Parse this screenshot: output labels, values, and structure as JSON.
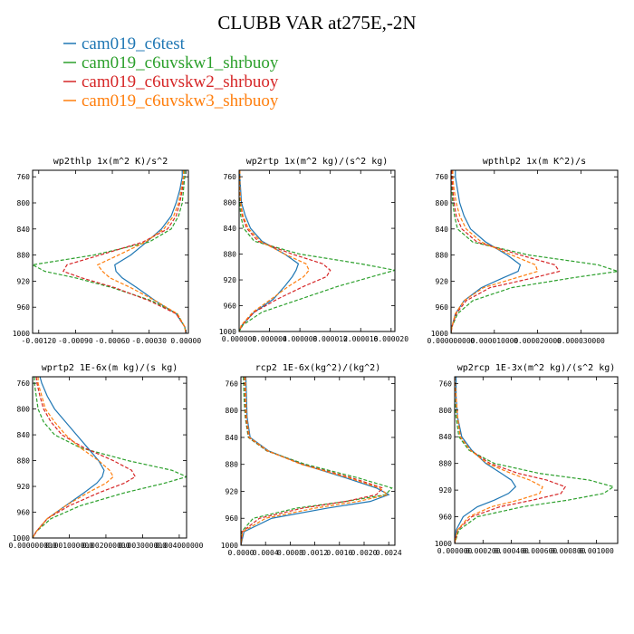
{
  "title": "CLUBB VAR at275E,-2N",
  "legend": [
    {
      "label": "cam019_c6test",
      "color": "#1f77b4"
    },
    {
      "label": "cam019_c6uvskw1_shrbuoy",
      "color": "#2ca02c"
    },
    {
      "label": "cam019_c6uvskw2_shrbuoy",
      "color": "#d62728"
    },
    {
      "label": "cam019_c6uvskw3_shrbuoy",
      "color": "#ff7f0e"
    }
  ],
  "chart_data": [
    {
      "type": "line",
      "title": "wp2thlp  1x(m^2 K)/s^2",
      "ylim": [
        1000,
        750
      ],
      "yticks": [
        760,
        800,
        840,
        880,
        920,
        960,
        1000
      ],
      "xlim": [
        -0.00125,
        2e-05
      ],
      "xticks": [
        -0.0012,
        -0.0009,
        -0.0006,
        -0.0003,
        0.0
      ],
      "xtick_labels": [
        "-0.00120",
        "-0.00090",
        "-0.00060",
        "-0.00030",
        "0.00000"
      ],
      "y": [
        750,
        760,
        780,
        800,
        820,
        840,
        860,
        880,
        895,
        905,
        915,
        930,
        950,
        970,
        990,
        1000
      ],
      "series": [
        {
          "name": "cam019_c6test",
          "values": [
            -3e-05,
            -3e-05,
            -5e-05,
            -8e-05,
            -0.00012,
            -0.0002,
            -0.00032,
            -0.00045,
            -0.00058,
            -0.00057,
            -0.00052,
            -0.0004,
            -0.00025,
            -8e-05,
            -1e-05,
            0.0
          ]
        },
        {
          "name": "cam019_c6uvskw1_shrbuoy",
          "values": [
            -1e-05,
            -1e-05,
            -2e-05,
            -3e-05,
            -6e-05,
            -0.00012,
            -0.0003,
            -0.00075,
            -0.00125,
            -0.00115,
            -0.0009,
            -0.0006,
            -0.00028,
            -7e-05,
            -1e-05,
            0.0
          ]
        },
        {
          "name": "cam019_c6uvskw2_shrbuoy",
          "values": [
            -2e-05,
            -2e-05,
            -3e-05,
            -5e-05,
            -8e-05,
            -0.00015,
            -0.00035,
            -0.0007,
            -0.00097,
            -0.001,
            -0.00085,
            -0.00058,
            -0.0003,
            -8e-05,
            -1e-05,
            0.0
          ]
        },
        {
          "name": "cam019_c6uvskw3_shrbuoy",
          "values": [
            -2e-05,
            -2e-05,
            -4e-05,
            -6e-05,
            -0.0001,
            -0.00018,
            -0.00033,
            -0.00055,
            -0.00072,
            -0.00068,
            -0.00062,
            -0.00045,
            -0.00025,
            -7e-05,
            -1e-05,
            0.0
          ]
        }
      ]
    },
    {
      "type": "line",
      "title": "wp2rtp  1x(m^2 kg)/(s^2 kg)",
      "ylim": [
        1000,
        750
      ],
      "yticks": [
        760,
        800,
        840,
        880,
        920,
        960,
        1000
      ],
      "xlim": [
        0,
        2.05e-05
      ],
      "xticks": [
        0,
        4e-06,
        8e-06,
        1.2e-05,
        1.6e-05,
        2e-05
      ],
      "xtick_labels": [
        "0.000000",
        "0.000004",
        "0.000008",
        "0.000012",
        "0.000016",
        "0.000020"
      ],
      "y": [
        750,
        760,
        780,
        800,
        820,
        840,
        860,
        880,
        895,
        905,
        915,
        930,
        950,
        970,
        990,
        1000
      ],
      "series": [
        {
          "name": "cam019_c6test",
          "values": [
            1e-07,
            1e-07,
            2e-07,
            3e-07,
            8e-07,
            1.5e-06,
            3e-06,
            6e-06,
            7.8e-06,
            7.5e-06,
            7e-06,
            6e-06,
            4.5e-06,
            2e-06,
            4e-07,
            0.0
          ]
        },
        {
          "name": "cam019_c6uvskw1_shrbuoy",
          "values": [
            0.0,
            0.0,
            0.0,
            1e-07,
            2e-07,
            6e-07,
            2e-06,
            8e-06,
            1.6e-05,
            2.05e-05,
            1.75e-05,
            1.3e-05,
            8e-06,
            3e-06,
            5e-07,
            0.0
          ]
        },
        {
          "name": "cam019_c6uvskw2_shrbuoy",
          "values": [
            0.0,
            0.0,
            1e-07,
            2e-07,
            4e-07,
            1e-06,
            2.5e-06,
            7e-06,
            1.1e-05,
            1.2e-05,
            1.15e-05,
            8.5e-06,
            5e-06,
            2e-06,
            4e-07,
            0.0
          ]
        },
        {
          "name": "cam019_c6uvskw3_shrbuoy",
          "values": [
            1e-07,
            1e-07,
            1e-07,
            2e-07,
            5e-07,
            1.2e-06,
            2.8e-06,
            6e-06,
            8.8e-06,
            9.2e-06,
            8.5e-06,
            6.5e-06,
            4.2e-06,
            1.8e-06,
            3e-07,
            0.0
          ]
        }
      ]
    },
    {
      "type": "line",
      "title": "wpthlp2  1x(m K^2)/s",
      "ylim": [
        1000,
        750
      ],
      "yticks": [
        760,
        800,
        840,
        880,
        920,
        960,
        1000
      ],
      "xlim": [
        0,
        3.85e-05
      ],
      "xticks": [
        0,
        1e-05,
        2e-05,
        3e-05
      ],
      "xtick_labels": [
        "0.000000000",
        "0.000010000",
        "0.000020000",
        "0.000030000"
      ],
      "y": [
        750,
        760,
        780,
        800,
        820,
        840,
        860,
        880,
        895,
        905,
        915,
        930,
        950,
        970,
        990,
        1000
      ],
      "series": [
        {
          "name": "cam019_c6test",
          "values": [
            1e-06,
            1e-06,
            1.5e-06,
            2e-06,
            3e-06,
            4.5e-06,
            8e-06,
            1.3e-05,
            1.6e-05,
            1.55e-05,
            1.2e-05,
            7e-06,
            3e-06,
            1e-06,
            2e-07,
            0.0
          ]
        },
        {
          "name": "cam019_c6uvskw1_shrbuoy",
          "values": [
            0.0,
            0.0,
            2e-07,
            4e-07,
            8e-07,
            1.5e-06,
            5e-06,
            1.8e-05,
            3.4e-05,
            3.85e-05,
            2.8e-05,
            1.4e-05,
            5e-06,
            1.5e-06,
            2e-07,
            0.0
          ]
        },
        {
          "name": "cam019_c6uvskw2_shrbuoy",
          "values": [
            2e-07,
            2e-07,
            4e-07,
            7e-07,
            1.2e-06,
            2.5e-06,
            6e-06,
            1.6e-05,
            2.4e-05,
            2.5e-05,
            1.9e-05,
            9e-06,
            3.5e-06,
            1.2e-06,
            2e-07,
            0.0
          ]
        },
        {
          "name": "cam019_c6uvskw3_shrbuoy",
          "values": [
            4e-07,
            4e-07,
            7e-07,
            1.2e-06,
            2e-06,
            3.5e-06,
            7e-06,
            1.4e-05,
            1.95e-05,
            2e-05,
            1.5e-05,
            7.5e-06,
            3e-06,
            1e-06,
            2e-07,
            0.0
          ]
        }
      ]
    },
    {
      "type": "line",
      "title": "wprtp2  1E-6x(m kg)/(s kg)",
      "ylim": [
        1000,
        750
      ],
      "yticks": [
        760,
        800,
        840,
        880,
        920,
        960,
        1000
      ],
      "xlim": [
        0,
        0.0042
      ],
      "xticks": [
        0,
        0.001,
        0.002,
        0.003,
        0.004
      ],
      "xtick_labels": [
        "0.000000000",
        "0.001000000",
        "0.002000000",
        "0.003000000",
        "0.004000000"
      ],
      "y": [
        750,
        760,
        780,
        800,
        820,
        840,
        860,
        880,
        895,
        905,
        915,
        930,
        950,
        970,
        990,
        1000
      ],
      "series": [
        {
          "name": "cam019_c6test",
          "values": [
            0.0002,
            0.00025,
            0.0004,
            0.0006,
            0.0009,
            0.0012,
            0.0015,
            0.0018,
            0.00195,
            0.0019,
            0.00175,
            0.0014,
            0.0009,
            0.0004,
            0.0001,
            0.0
          ]
        },
        {
          "name": "cam019_c6uvskw1_shrbuoy",
          "values": [
            5e-05,
            5e-05,
            0.0001,
            0.00015,
            0.0003,
            0.0006,
            0.0013,
            0.0026,
            0.0038,
            0.0042,
            0.0036,
            0.0025,
            0.0013,
            0.0005,
            0.0001,
            0.0
          ]
        },
        {
          "name": "cam019_c6uvskw2_shrbuoy",
          "values": [
            0.0001,
            0.00012,
            0.0002,
            0.0003,
            0.0005,
            0.0008,
            0.0014,
            0.0022,
            0.0027,
            0.0028,
            0.0025,
            0.0018,
            0.001,
            0.0004,
            0.0001,
            0.0
          ]
        },
        {
          "name": "cam019_c6uvskw3_shrbuoy",
          "values": [
            0.00015,
            0.00015,
            0.00025,
            0.00035,
            0.0006,
            0.0009,
            0.0013,
            0.0018,
            0.0021,
            0.0022,
            0.002,
            0.0015,
            0.0009,
            0.0004,
            0.0001,
            0.0
          ]
        }
      ]
    },
    {
      "type": "line",
      "title": "rcp2  1E-6x(kg^2)/(kg^2)",
      "ylim": [
        1000,
        750
      ],
      "yticks": [
        760,
        800,
        840,
        880,
        920,
        960,
        1000
      ],
      "xlim": [
        0,
        0.0025
      ],
      "xticks": [
        0,
        0.0004,
        0.0008,
        0.0012,
        0.0016,
        0.002,
        0.0024
      ],
      "xtick_labels": [
        "0.0000",
        "0.0004",
        "0.0008",
        "0.0012",
        "0.0016",
        "0.0020",
        "0.0024"
      ],
      "y": [
        750,
        780,
        810,
        840,
        860,
        880,
        900,
        915,
        925,
        935,
        945,
        960,
        980,
        1000
      ],
      "series": [
        {
          "name": "cam019_c6test",
          "values": [
            8e-05,
            9e-05,
            0.0001,
            0.00015,
            0.00045,
            0.001,
            0.0017,
            0.0022,
            0.0024,
            0.0021,
            0.0014,
            0.0005,
            5e-05,
            0.0
          ]
        },
        {
          "name": "cam019_c6uvskw1_shrbuoy",
          "values": [
            4e-05,
            5e-05,
            7e-05,
            0.00012,
            0.00042,
            0.00105,
            0.0019,
            0.00245,
            0.00235,
            0.0017,
            0.0009,
            0.0002,
            1e-05,
            0.0
          ]
        },
        {
          "name": "cam019_c6uvskw2_shrbuoy",
          "values": [
            6e-05,
            7e-05,
            8e-05,
            0.00013,
            0.00043,
            0.001,
            0.0018,
            0.0023,
            0.0022,
            0.0017,
            0.001,
            0.0003,
            2e-05,
            0.0
          ]
        },
        {
          "name": "cam019_c6uvskw3_shrbuoy",
          "values": [
            7e-05,
            8e-05,
            9e-05,
            0.00014,
            0.00044,
            0.00098,
            0.00175,
            0.00225,
            0.00238,
            0.0019,
            0.0012,
            0.0004,
            3e-05,
            0.0
          ]
        }
      ]
    },
    {
      "type": "line",
      "title": "wp2rcp  1E-3x(m^2 kg)/(s^2 kg)",
      "ylim": [
        1000,
        750
      ],
      "yticks": [
        760,
        800,
        840,
        880,
        920,
        960,
        1000
      ],
      "xlim": [
        0,
        0.00115
      ],
      "xticks": [
        0,
        0.0002,
        0.0004,
        0.0006,
        0.0008,
        0.001
      ],
      "xtick_labels": [
        "0.000000",
        "0.000200",
        "0.000400",
        "0.000600",
        "0.000800",
        "0.001000"
      ],
      "y": [
        750,
        780,
        810,
        840,
        860,
        880,
        895,
        905,
        915,
        925,
        935,
        945,
        960,
        980,
        1000
      ],
      "series": [
        {
          "name": "cam019_c6test",
          "values": [
            1e-05,
            1e-05,
            2e-05,
            5e-05,
            0.00012,
            0.00022,
            0.00033,
            0.0004,
            0.00043,
            0.00038,
            0.00028,
            0.00016,
            6e-05,
            1e-05,
            0.0
          ]
        },
        {
          "name": "cam019_c6uvskw1_shrbuoy",
          "values": [
            0.0,
            0.0,
            1e-05,
            3e-05,
            0.0001,
            0.00028,
            0.0006,
            0.00095,
            0.00112,
            0.00105,
            0.0008,
            0.00048,
            0.00016,
            3e-05,
            0.0
          ]
        },
        {
          "name": "cam019_c6uvskw2_shrbuoy",
          "values": [
            0.0,
            1e-05,
            2e-05,
            4e-05,
            0.00011,
            0.00025,
            0.00045,
            0.00065,
            0.00078,
            0.00075,
            0.00055,
            0.00032,
            0.00012,
            2e-05,
            0.0
          ]
        },
        {
          "name": "cam019_c6uvskw3_shrbuoy",
          "values": [
            0.0,
            1e-05,
            2e-05,
            4e-05,
            0.00011,
            0.00023,
            0.0004,
            0.00053,
            0.00062,
            0.0006,
            0.00045,
            0.00026,
            0.0001,
            2e-05,
            0.0
          ]
        }
      ]
    }
  ]
}
